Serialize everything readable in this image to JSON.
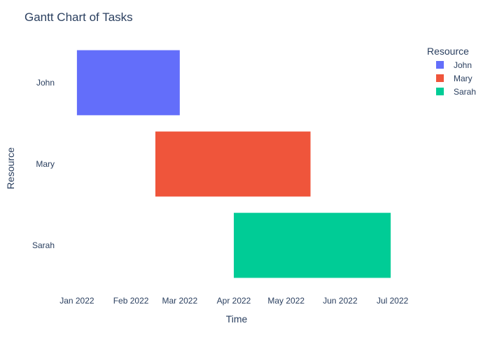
{
  "chart_data": {
    "type": "gantt",
    "title": "Gantt Chart of Tasks",
    "xlabel": "Time",
    "ylabel": "Resource",
    "x_ticks": [
      "2022-01-01",
      "2022-02-01",
      "2022-03-01",
      "2022-04-01",
      "2022-05-01",
      "2022-06-01",
      "2022-07-01"
    ],
    "x_tick_labels": [
      "Jan 2022",
      "Feb 2022",
      "Mar 2022",
      "Apr 2022",
      "May 2022",
      "Jun 2022",
      "Jul 2022"
    ],
    "xlim": [
      "2021-12-20",
      "2022-07-16"
    ],
    "categories": [
      "John",
      "Mary",
      "Sarah"
    ],
    "tasks": [
      {
        "resource": "John",
        "start": "2022-01-01",
        "end": "2022-03-01"
      },
      {
        "resource": "Mary",
        "start": "2022-02-15",
        "end": "2022-05-15"
      },
      {
        "resource": "Sarah",
        "start": "2022-04-01",
        "end": "2022-06-30"
      }
    ],
    "legend": {
      "title": "Resource",
      "position": "top-right",
      "entries": [
        "John",
        "Mary",
        "Sarah"
      ]
    },
    "colors": {
      "John": "#636efa",
      "Mary": "#ef553b",
      "Sarah": "#00cc96"
    },
    "grid": false
  }
}
